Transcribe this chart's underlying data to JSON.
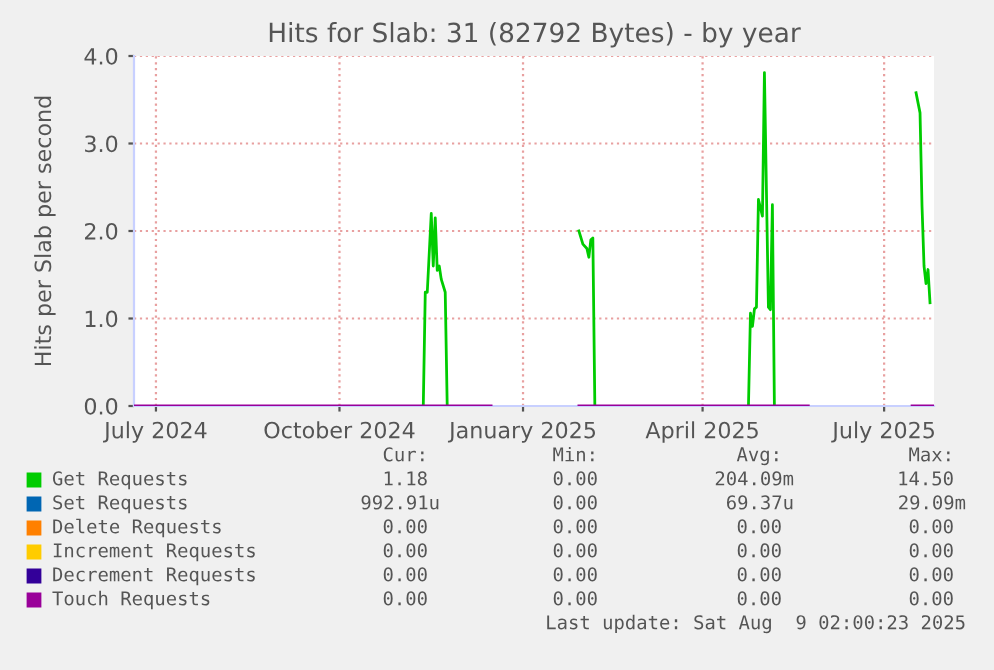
{
  "chart_data": {
    "type": "line",
    "title": "Hits for Slab: 31 (82792 Bytes) - by year",
    "ylabel": "Hits per Slab per second",
    "xlim": [
      "2024-06-20",
      "2025-07-26"
    ],
    "xticks": [
      {
        "value": "2024-07-01",
        "label": "July 2024"
      },
      {
        "value": "2024-10-01",
        "label": "October 2024"
      },
      {
        "value": "2025-01-01",
        "label": "January 2025"
      },
      {
        "value": "2025-04-01",
        "label": "April 2025"
      },
      {
        "value": "2025-07-01",
        "label": "July 2025"
      }
    ],
    "ylim": [
      0,
      4
    ],
    "yticks": [
      {
        "value": 0,
        "label": "0.0"
      },
      {
        "value": 1,
        "label": "1.0"
      },
      {
        "value": 2,
        "label": "2.0"
      },
      {
        "value": 3,
        "label": "3.0"
      },
      {
        "value": 4,
        "label": "4.0"
      }
    ],
    "grid": true,
    "legend": "bottom",
    "marker": "none",
    "line_style": "solid",
    "series": [
      {
        "name": "Get Requests",
        "color": "#00cc00",
        "x": [
          "2024-11-12",
          "2024-11-13",
          "2024-11-14",
          "2024-11-16",
          "2024-11-17",
          "2024-11-18",
          "2024-11-19",
          "2024-11-20",
          "2024-11-21",
          "2024-11-23",
          "2024-11-24",
          "2024-12-01",
          "2025-01-29",
          "2025-01-31",
          "2025-02-02",
          "2025-02-03",
          "2025-02-04",
          "2025-02-05",
          "2025-02-06",
          "2025-03-01",
          "2025-04-24",
          "2025-04-25",
          "2025-04-26",
          "2025-04-27",
          "2025-04-28",
          "2025-04-29",
          "2025-05-01",
          "2025-05-02",
          "2025-05-04",
          "2025-05-05",
          "2025-05-06",
          "2025-05-07",
          "2025-06-01",
          "2025-07-17",
          "2025-07-19",
          "2025-07-20",
          "2025-07-21",
          "2025-07-22",
          "2025-07-23",
          "2025-07-24"
        ],
        "values": [
          0,
          1.3,
          1.3,
          2.2,
          1.6,
          2.15,
          1.55,
          1.6,
          1.45,
          1.3,
          0,
          null,
          2.0,
          1.85,
          1.8,
          1.7,
          1.9,
          1.92,
          0,
          null,
          0,
          1.06,
          0.91,
          1.11,
          1.13,
          2.36,
          2.17,
          3.81,
          1.13,
          1.1,
          2.3,
          0,
          null,
          3.58,
          3.35,
          2.28,
          1.6,
          1.4,
          1.56,
          1.18
        ]
      },
      {
        "name": "Set Requests",
        "color": "#0066b3"
      },
      {
        "name": "Delete Requests",
        "color": "#ff8000"
      },
      {
        "name": "Increment Requests",
        "color": "#ffcc00"
      },
      {
        "name": "Decrement Requests",
        "color": "#330099"
      },
      {
        "name": "Touch Requests",
        "color": "#990099",
        "x": [
          "2024-06-20",
          "2024-12-16",
          "2024-12-17",
          "2025-01-29",
          "2025-05-24",
          "2025-05-25",
          "2025-07-15",
          "2025-07-26"
        ],
        "values": [
          0,
          0,
          null,
          0,
          0,
          null,
          0,
          0
        ]
      }
    ],
    "annotations": [
      "Cur:",
      "Min:",
      "Avg:",
      "Max:",
      "1.18",
      "0.00",
      "204.09m",
      "14.50",
      "992.91u",
      "0.00",
      "69.37u",
      "29.09m",
      "0.00",
      "0.00",
      "0.00",
      "0.00",
      "0.00",
      "0.00",
      "0.00",
      "0.00",
      "0.00",
      "0.00",
      "0.00",
      "0.00",
      "0.00",
      "0.00",
      "0.00",
      "0.00",
      "Last update: Sat Aug  9 02:00:23 2025"
    ]
  }
}
